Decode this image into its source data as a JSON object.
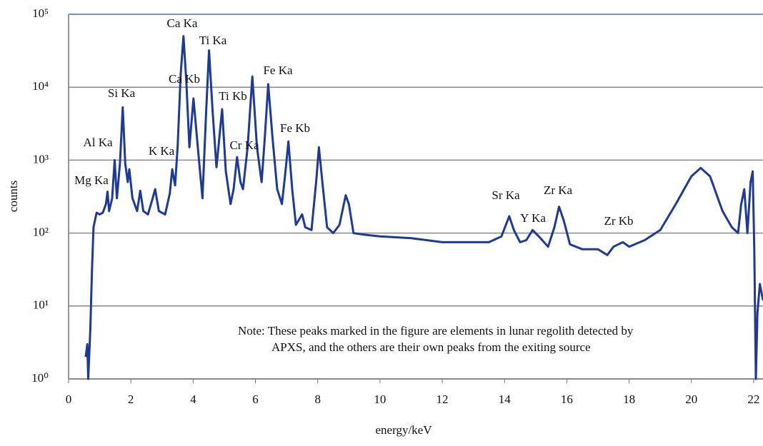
{
  "chart_data": {
    "type": "line",
    "x_label": "energy/keV",
    "y_label": "counts",
    "y_scale": "log",
    "grid": true,
    "xlim": [
      0,
      22.3
    ],
    "ylim": [
      1,
      100000
    ],
    "xticks": [
      0,
      2,
      4,
      6,
      8,
      10,
      12,
      14,
      16,
      18,
      20,
      22
    ],
    "yticks": [
      {
        "value": 1,
        "label": "10⁰"
      },
      {
        "value": 10,
        "label": "10¹"
      },
      {
        "value": 100,
        "label": "10²"
      },
      {
        "value": 1000,
        "label": "10³"
      },
      {
        "value": 10000,
        "label": "10⁴"
      },
      {
        "value": 100000,
        "label": "10⁵"
      }
    ],
    "peak_labels": [
      "Ca Ka",
      "Ti Ka",
      "Ca Kb",
      "Si Ka",
      "Ti Kb",
      "Fe Ka",
      "Fe Kb",
      "Al Ka",
      "K Ka",
      "Cr Ka",
      "Mg Ka",
      "Sr Ka",
      "Y Ka",
      "Zr Ka",
      "Zr Kb"
    ],
    "note": [
      "Note: These peaks marked in the figure are elements in lunar regolith detected by",
      "APXS, and the others are their own peaks from the exiting source"
    ],
    "x": [
      0.55,
      0.6,
      0.63,
      0.7,
      0.75,
      0.8,
      0.9,
      1.0,
      1.1,
      1.2,
      1.25,
      1.3,
      1.4,
      1.48,
      1.55,
      1.65,
      1.74,
      1.82,
      1.9,
      1.95,
      2.05,
      2.2,
      2.3,
      2.4,
      2.55,
      2.7,
      2.78,
      2.9,
      3.1,
      3.25,
      3.33,
      3.42,
      3.5,
      3.6,
      3.69,
      3.78,
      3.88,
      4.01,
      4.15,
      4.3,
      4.42,
      4.51,
      4.62,
      4.75,
      4.93,
      5.05,
      5.2,
      5.3,
      5.41,
      5.52,
      5.6,
      5.75,
      5.9,
      6.05,
      6.2,
      6.3,
      6.41,
      6.55,
      6.7,
      6.85,
      6.95,
      7.06,
      7.18,
      7.3,
      7.5,
      7.6,
      7.8,
      7.95,
      8.04,
      8.15,
      8.3,
      8.5,
      8.7,
      8.9,
      9.0,
      9.15,
      9.5,
      10,
      11,
      12,
      13,
      13.5,
      13.9,
      14.15,
      14.3,
      14.5,
      14.7,
      14.9,
      15.1,
      15.4,
      15.6,
      15.75,
      15.9,
      16.1,
      16.5,
      17,
      17.3,
      17.5,
      17.8,
      18,
      18.5,
      19,
      19.5,
      20,
      20.3,
      20.6,
      21,
      21.3,
      21.5,
      21.6,
      21.7,
      21.8,
      21.9,
      21.97,
      22.02,
      22.07,
      22.12,
      22.2,
      22.3
    ],
    "series": [
      {
        "name": "spectrum",
        "color": "#1f3a93",
        "values": [
          2,
          3,
          1,
          5,
          30,
          120,
          190,
          180,
          190,
          250,
          370,
          200,
          300,
          1000,
          300,
          900,
          5300,
          900,
          500,
          750,
          300,
          200,
          380,
          200,
          180,
          300,
          400,
          200,
          180,
          350,
          750,
          450,
          1500,
          15000,
          50000,
          12000,
          1500,
          7000,
          1500,
          300,
          5000,
          32000,
          5000,
          800,
          5000,
          700,
          250,
          400,
          1100,
          500,
          400,
          1500,
          14000,
          1500,
          500,
          2000,
          11000,
          2000,
          400,
          250,
          600,
          1800,
          400,
          130,
          180,
          120,
          110,
          500,
          1500,
          500,
          120,
          100,
          130,
          330,
          250,
          100,
          95,
          90,
          85,
          75,
          75,
          75,
          90,
          170,
          110,
          75,
          80,
          110,
          90,
          65,
          120,
          230,
          150,
          70,
          60,
          60,
          50,
          65,
          75,
          65,
          80,
          110,
          250,
          600,
          780,
          600,
          200,
          120,
          100,
          250,
          400,
          100,
          500,
          700,
          60,
          1,
          8,
          20,
          12
        ]
      }
    ]
  }
}
